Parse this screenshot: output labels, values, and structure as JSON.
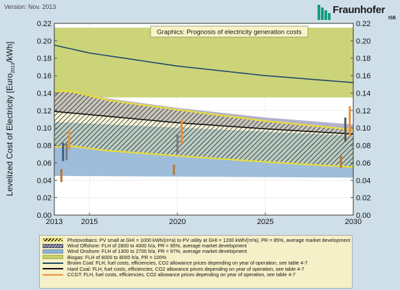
{
  "version": "Version: Nov. 2013",
  "brand": {
    "name": "Fraunhofer",
    "sub": "ISE",
    "icon": "fraunhofer-logo-icon"
  },
  "legend": [
    {
      "key": "pv",
      "label": "Photovoltaics: PV small at GHI = 1000 kWh/(m²a) to PV utility at GHI = 1200 kWh/(m²a), PR = 85%, average market development"
    },
    {
      "key": "off",
      "label": "Wind Offshore: FLH of 2800 to 4000 h/a, PR = 95%, average market development"
    },
    {
      "key": "on",
      "label": "Wind Onshore: FLH of 1300 to 2700 h/a, PR = 97%, average market development"
    },
    {
      "key": "bio",
      "label": "Biogas: FLH of 6000 to 8000 h/a, PR = 100%"
    },
    {
      "key": "brown",
      "label": "Brown Coal: FLH, fuel costs, efficiencies, CO2 allowance prices depending on year of operation, see table 4-7"
    },
    {
      "key": "hard",
      "label": "Hard Coal: FLH, fuel costs, efficiencies, CO2 allowance prices depending on year of operation, see table 4-7"
    },
    {
      "key": "ccgt",
      "label": "CCGT: FLH, fuel costs, efficiencies, CO2 allowance prices depending on year of operation, see table 4-7"
    }
  ],
  "chart_data": {
    "type": "area",
    "title": "Graphics: Prognosis of electricity generation costs",
    "ylabel_parts": [
      "Levelized Cost of Electricity [Euro",
      "2013",
      "/kWh]"
    ],
    "xlim": [
      2013,
      2030
    ],
    "ylim": [
      0,
      0.22
    ],
    "xticks": [
      2013,
      2015,
      2020,
      2025,
      2030
    ],
    "yticks": [
      "0.00",
      "0.02",
      "0.04",
      "0.06",
      "0.08",
      "0.10",
      "0.12",
      "0.14",
      "0.16",
      "0.18",
      "0.20",
      "0.22"
    ],
    "grid": true,
    "bands": [
      {
        "key": "bio",
        "color": "#c7cf6a",
        "lower": [
          [
            2013,
            0.135
          ],
          [
            2030,
            0.135
          ]
        ],
        "upper": [
          [
            2013,
            0.215
          ],
          [
            2030,
            0.215
          ]
        ]
      },
      {
        "key": "off",
        "color": "#aaa8c9",
        "lower": [
          [
            2013,
            0.119
          ],
          [
            2016,
            0.113
          ],
          [
            2020,
            0.106
          ],
          [
            2025,
            0.099
          ],
          [
            2030,
            0.093
          ]
        ],
        "upper": [
          [
            2013,
            0.143
          ],
          [
            2016,
            0.134
          ],
          [
            2020,
            0.123
          ],
          [
            2025,
            0.112
          ],
          [
            2030,
            0.104
          ]
        ]
      },
      {
        "key": "on",
        "color": "#92b6d6",
        "lower": [
          [
            2013,
            0.045
          ],
          [
            2030,
            0.043
          ]
        ],
        "upper": [
          [
            2013,
            0.107
          ],
          [
            2030,
            0.091
          ]
        ]
      },
      {
        "key": "pv",
        "color": "#f2ea9a",
        "hatch": true,
        "lower": [
          [
            2013,
            0.078
          ],
          [
            2014,
            0.079
          ],
          [
            2016,
            0.074
          ],
          [
            2020,
            0.068
          ],
          [
            2025,
            0.061
          ],
          [
            2030,
            0.055
          ]
        ],
        "upper": [
          [
            2013,
            0.142
          ],
          [
            2014,
            0.142
          ],
          [
            2016,
            0.132
          ],
          [
            2020,
            0.121
          ],
          [
            2025,
            0.108
          ],
          [
            2030,
            0.098
          ]
        ]
      }
    ],
    "lines": [
      {
        "key": "brown_curve",
        "color": "#1e4a6b",
        "points": [
          [
            2013,
            0.195
          ],
          [
            2015,
            0.186
          ],
          [
            2020,
            0.171
          ],
          [
            2025,
            0.16
          ],
          [
            2030,
            0.152
          ]
        ]
      },
      {
        "key": "hard_curve",
        "color": "#111111",
        "points": [
          [
            2013,
            0.119
          ],
          [
            2020,
            0.106
          ],
          [
            2025,
            0.099
          ],
          [
            2030,
            0.093
          ]
        ]
      }
    ],
    "bars": [
      {
        "key": "brown",
        "color": "#355f86",
        "x": 2013.5,
        "low": 0.062,
        "high": 0.083
      },
      {
        "key": "ccgt",
        "color": "#b8772a",
        "x": 2013.4,
        "low": 0.038,
        "high": 0.053
      },
      {
        "key": "hard",
        "color": "#7a7a7a",
        "x": 2013.7,
        "low": 0.063,
        "high": 0.082
      },
      {
        "key": "ccgt",
        "color": "#e8913a",
        "x": 2013.85,
        "low": 0.075,
        "high": 0.098
      },
      {
        "key": "ccgt",
        "color": "#b8772a",
        "x": 2019.8,
        "low": 0.046,
        "high": 0.058
      },
      {
        "key": "hard",
        "color": "#7a7a7a",
        "x": 2020.0,
        "low": 0.07,
        "high": 0.093
      },
      {
        "key": "ccgt",
        "color": "#e8913a",
        "x": 2020.25,
        "low": 0.082,
        "high": 0.11
      },
      {
        "key": "ccgt",
        "color": "#b8772a",
        "x": 2029.3,
        "low": 0.054,
        "high": 0.068
      },
      {
        "key": "hard",
        "color": "#5a5a5a",
        "x": 2029.55,
        "low": 0.084,
        "high": 0.112
      },
      {
        "key": "ccgt",
        "color": "#e8913a",
        "x": 2029.8,
        "low": 0.09,
        "high": 0.125
      }
    ]
  }
}
